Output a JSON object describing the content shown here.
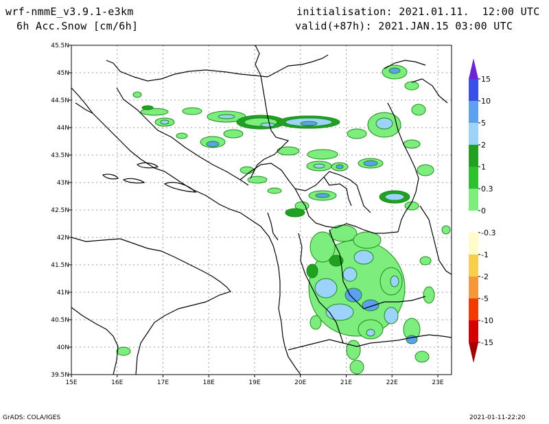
{
  "header": {
    "title_line1": "wrf-nmmE_v3.9.1-e3km",
    "title_line2": "6h Acc.Snow [cm/6h]",
    "init_text": "initialisation: 2021.01.11.  12:00 UTC",
    "valid_text": "valid(+87h): 2021.JAN.15 03:00 UTC"
  },
  "map": {
    "lon_labels": [
      "15E",
      "16E",
      "17E",
      "18E",
      "19E",
      "20E",
      "21E",
      "22E",
      "23E"
    ],
    "lat_labels": [
      "39.5N",
      "40N",
      "40.5N",
      "41N",
      "41.5N",
      "42N",
      "42.5N",
      "43N",
      "43.5N",
      "44N",
      "44.5N",
      "45N",
      "45.5N"
    ],
    "lon_range": [
      15,
      23.3
    ],
    "lat_range": [
      39.5,
      45.5
    ],
    "grid": true
  },
  "legend": {
    "labels": [
      "15",
      "10",
      "5",
      "2",
      "1",
      "0.3",
      "0",
      "-0.3",
      "-1",
      "-2",
      "-5",
      "-10",
      "-15"
    ],
    "colors": [
      "#6e22d6",
      "#3a4ee8",
      "#5ea0f0",
      "#9cd3fa",
      "#21a121",
      "#2cc22c",
      "#7ded7d",
      "#ffffff",
      "#fffcc8",
      "#f7cf4a",
      "#f59838",
      "#f33a00",
      "#d60000",
      "#a40000"
    ]
  },
  "footer": {
    "left": "GrADS: COLA/IGES",
    "right": "2021-01-11-22:20"
  }
}
